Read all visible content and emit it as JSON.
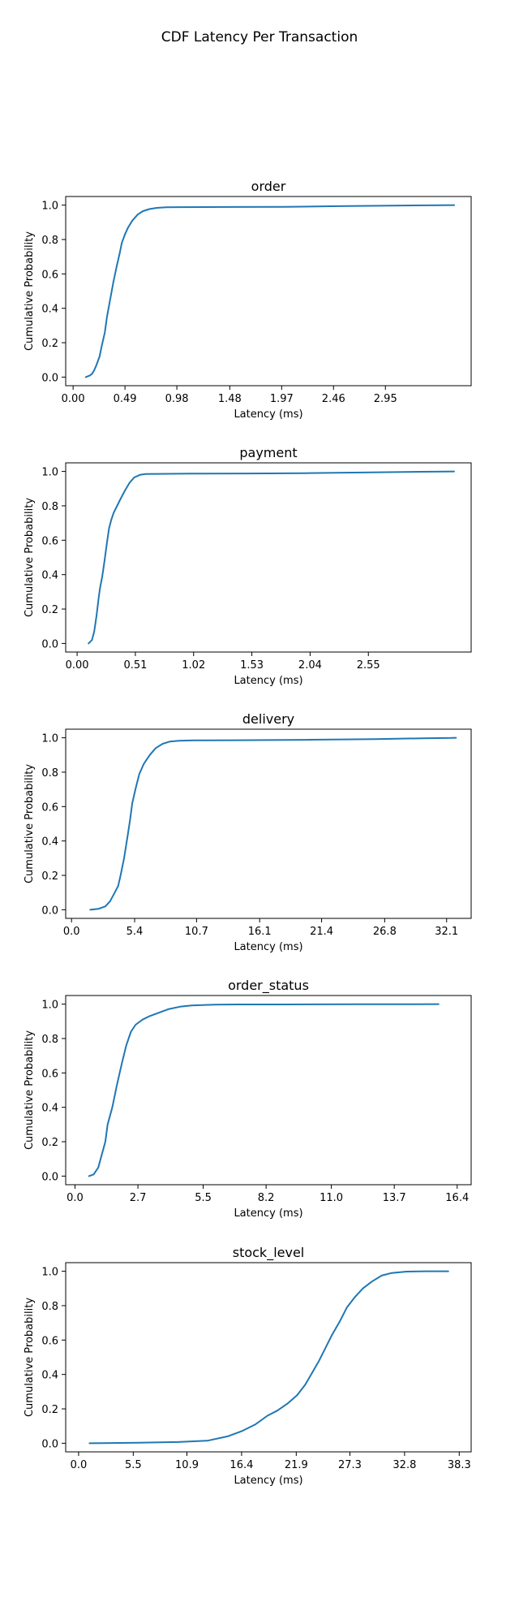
{
  "figure": {
    "title": "CDF Latency Per Transaction"
  },
  "chart_data": [
    {
      "type": "line",
      "title": "order",
      "xlabel": "Latency (ms)",
      "ylabel": "Cumulative Probability",
      "xlim": [
        -0.07,
        3.76
      ],
      "ylim": [
        -0.05,
        1.05
      ],
      "xticks": [
        "0.00",
        "0.49",
        "0.98",
        "1.48",
        "1.97",
        "2.46",
        "2.95"
      ],
      "yticks": [
        "0.0",
        "0.2",
        "0.4",
        "0.6",
        "0.8",
        "1.0"
      ],
      "grid": false,
      "color": "#1f77b4",
      "series": [
        {
          "x": [
            0.12,
            0.16,
            0.18,
            0.2,
            0.22,
            0.25,
            0.27,
            0.3,
            0.32,
            0.35,
            0.38,
            0.41,
            0.44,
            0.46,
            0.49,
            0.52,
            0.56,
            0.61,
            0.66,
            0.72,
            0.79,
            0.88,
            1.0,
            1.5,
            2.0,
            2.5,
            3.0,
            3.6
          ],
          "y": [
            0.0,
            0.01,
            0.02,
            0.04,
            0.07,
            0.12,
            0.18,
            0.26,
            0.35,
            0.45,
            0.55,
            0.64,
            0.72,
            0.78,
            0.83,
            0.87,
            0.91,
            0.945,
            0.965,
            0.977,
            0.984,
            0.987,
            0.988,
            0.989,
            0.99,
            0.994,
            0.997,
            1.0
          ]
        }
      ]
    },
    {
      "type": "line",
      "title": "payment",
      "xlabel": "Latency (ms)",
      "ylabel": "Cumulative Probability",
      "xlim": [
        -0.1,
        3.45
      ],
      "ylim": [
        -0.05,
        1.05
      ],
      "xticks": [
        "0.00",
        "0.51",
        "1.02",
        "1.53",
        "2.04",
        "2.55"
      ],
      "yticks": [
        "0.0",
        "0.2",
        "0.4",
        "0.6",
        "0.8",
        "1.0"
      ],
      "grid": false,
      "color": "#1f77b4",
      "series": [
        {
          "x": [
            0.1,
            0.13,
            0.15,
            0.17,
            0.19,
            0.2,
            0.22,
            0.24,
            0.26,
            0.28,
            0.3,
            0.32,
            0.35,
            0.38,
            0.42,
            0.46,
            0.5,
            0.55,
            0.6,
            0.7,
            1.0,
            1.5,
            2.0,
            2.5,
            3.0,
            3.3
          ],
          "y": [
            0.0,
            0.02,
            0.07,
            0.16,
            0.27,
            0.32,
            0.39,
            0.48,
            0.58,
            0.67,
            0.72,
            0.76,
            0.8,
            0.84,
            0.89,
            0.935,
            0.965,
            0.98,
            0.985,
            0.986,
            0.987,
            0.988,
            0.99,
            0.994,
            0.998,
            1.0
          ]
        }
      ]
    },
    {
      "type": "line",
      "title": "delivery",
      "xlabel": "Latency (ms)",
      "ylabel": "Cumulative Probability",
      "xlim": [
        -0.5,
        34.2
      ],
      "ylim": [
        -0.05,
        1.05
      ],
      "xticks": [
        "0.0",
        "5.4",
        "10.7",
        "16.1",
        "21.4",
        "26.8",
        "32.1"
      ],
      "yticks": [
        "0.0",
        "0.2",
        "0.4",
        "0.6",
        "0.8",
        "1.0"
      ],
      "grid": false,
      "color": "#1f77b4",
      "series": [
        {
          "x": [
            1.6,
            2.3,
            2.9,
            3.3,
            3.7,
            4.0,
            4.2,
            4.5,
            4.8,
            5.0,
            5.2,
            5.5,
            5.8,
            6.2,
            6.7,
            7.2,
            7.8,
            8.4,
            9.2,
            10.5,
            14.0,
            20.0,
            26.0,
            30.0,
            32.5,
            32.9
          ],
          "y": [
            0.0,
            0.005,
            0.02,
            0.05,
            0.1,
            0.14,
            0.2,
            0.3,
            0.43,
            0.52,
            0.62,
            0.71,
            0.79,
            0.85,
            0.9,
            0.94,
            0.965,
            0.978,
            0.983,
            0.985,
            0.986,
            0.988,
            0.992,
            0.997,
            0.999,
            1.0
          ]
        }
      ]
    },
    {
      "type": "line",
      "title": "order_status",
      "xlabel": "Latency (ms)",
      "ylabel": "Cumulative Probability",
      "xlim": [
        -0.4,
        17.0
      ],
      "ylim": [
        -0.05,
        1.05
      ],
      "xticks": [
        "0.0",
        "2.7",
        "5.5",
        "8.2",
        "11.0",
        "13.7",
        "16.4"
      ],
      "yticks": [
        "0.0",
        "0.2",
        "0.4",
        "0.6",
        "0.8",
        "1.0"
      ],
      "grid": false,
      "color": "#1f77b4",
      "series": [
        {
          "x": [
            0.6,
            0.8,
            1.0,
            1.1,
            1.3,
            1.4,
            1.6,
            1.8,
            2.0,
            2.2,
            2.4,
            2.6,
            2.9,
            3.2,
            3.6,
            4.0,
            4.5,
            5.0,
            5.5,
            6.0,
            7.0,
            9.0,
            12.0,
            14.0,
            15.6
          ],
          "y": [
            0.0,
            0.01,
            0.05,
            0.1,
            0.2,
            0.3,
            0.4,
            0.53,
            0.65,
            0.76,
            0.84,
            0.88,
            0.91,
            0.93,
            0.95,
            0.97,
            0.985,
            0.992,
            0.995,
            0.997,
            0.998,
            0.998,
            0.999,
            0.999,
            1.0
          ]
        }
      ]
    },
    {
      "type": "line",
      "title": "stock_level",
      "xlabel": "Latency (ms)",
      "ylabel": "Cumulative Probability",
      "xlim": [
        -1.3,
        39.5
      ],
      "ylim": [
        -0.05,
        1.05
      ],
      "xticks": [
        "0.0",
        "5.5",
        "10.9",
        "16.4",
        "21.9",
        "27.3",
        "32.8",
        "38.3"
      ],
      "yticks": [
        "0.0",
        "0.2",
        "0.4",
        "0.6",
        "0.8",
        "1.0"
      ],
      "grid": false,
      "color": "#1f77b4",
      "series": [
        {
          "x": [
            1.1,
            6.0,
            10.0,
            13.0,
            15.0,
            16.4,
            17.8,
            19.0,
            20.0,
            21.0,
            22.0,
            22.8,
            23.5,
            24.2,
            24.8,
            25.5,
            26.3,
            27.0,
            27.8,
            28.6,
            29.5,
            30.5,
            31.5,
            33.0,
            35.0,
            37.2
          ],
          "y": [
            0.0,
            0.003,
            0.007,
            0.015,
            0.04,
            0.07,
            0.11,
            0.16,
            0.19,
            0.23,
            0.28,
            0.34,
            0.41,
            0.48,
            0.55,
            0.63,
            0.71,
            0.79,
            0.85,
            0.9,
            0.94,
            0.975,
            0.99,
            0.998,
            1.0,
            1.0
          ]
        }
      ]
    }
  ]
}
